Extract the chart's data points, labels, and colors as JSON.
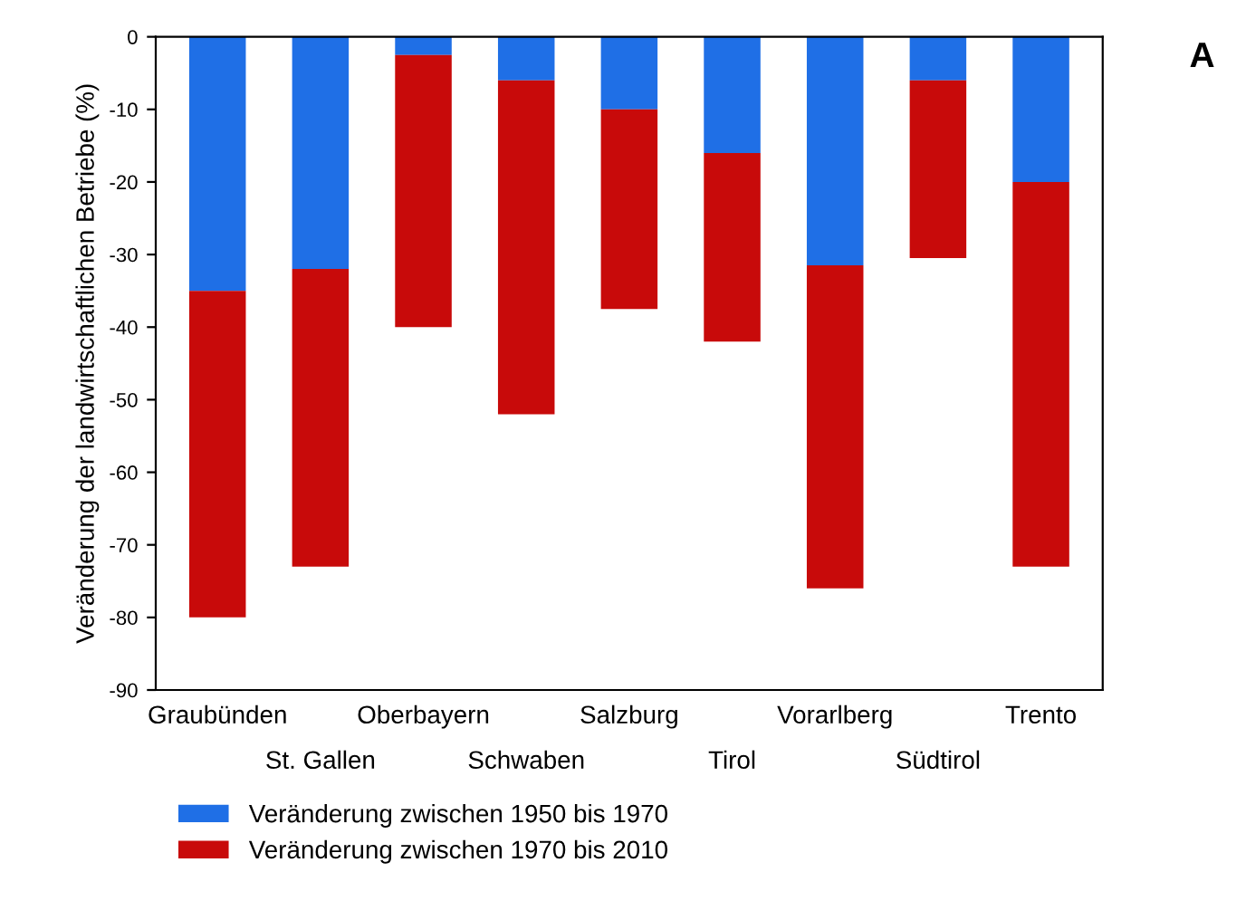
{
  "chart_data": {
    "type": "bar",
    "stacked": true,
    "ylabel": "Veränderung der landwirtschaftlichen Betriebe (%)",
    "categories": [
      "Graubünden",
      "St. Gallen",
      "Oberbayern",
      "Schwaben",
      "Salzburg",
      "Tirol",
      "Vorarlberg",
      "Südtirol",
      "Trento"
    ],
    "series": [
      {
        "name": "Veränderung zwischen 1950 bis 1970",
        "color": "#1f6fe6",
        "values": [
          -35,
          -32,
          -2.5,
          -6,
          -10,
          -16,
          -31.5,
          -6,
          -20
        ]
      },
      {
        "name": "Veränderung zwischen 1970 bis 2010",
        "color": "#c80a0a",
        "values": [
          -45,
          -41,
          -37.5,
          -46,
          -27.5,
          -26,
          -44.5,
          -24.5,
          -53
        ]
      }
    ],
    "ylim": [
      -90,
      0
    ],
    "yticks": [
      0,
      -10,
      -20,
      -30,
      -40,
      -50,
      -60,
      -70,
      -80,
      -90
    ],
    "grid": false,
    "legend": "bottom left",
    "annotations": [
      "A"
    ]
  }
}
